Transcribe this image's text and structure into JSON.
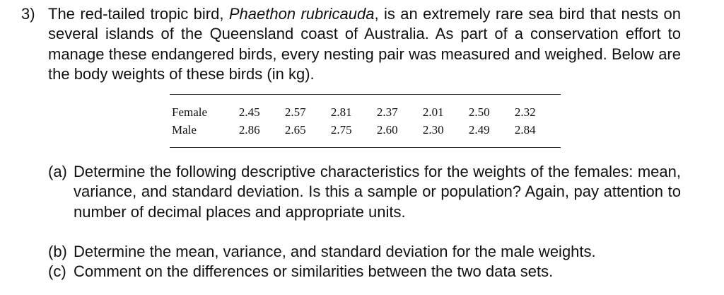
{
  "problem": {
    "number": "3)",
    "intro": [
      "The red-tailed tropic bird, ",
      "Phaethon rubricauda",
      ", is an extremely rare sea bird that nests on several islands of the Queensland coast of Australia. As part of a conservation effort to manage these endangered birds, every nesting pair was measured and weighed. Below are the body weights of these birds (in kg)."
    ]
  },
  "table": {
    "rows": [
      [
        "Female",
        "2.45",
        "2.57",
        "2.81",
        "2.37",
        "2.01",
        "2.50",
        "2.32"
      ],
      [
        "Male",
        "2.86",
        "2.65",
        "2.75",
        "2.60",
        "2.30",
        "2.49",
        "2.84"
      ]
    ]
  },
  "parts": [
    {
      "label": "(a)",
      "text": "Determine the following descriptive characteristics for the weights of the females: mean, variance, and standard deviation. Is this a sample or population? Again, pay attention to number of decimal places and appropriate units."
    },
    {
      "label": "(b)",
      "text": "Determine the mean, variance, and standard deviation for the male weights."
    },
    {
      "label": "(c)",
      "text": "Comment on the differences or similarities between the two data sets."
    }
  ]
}
